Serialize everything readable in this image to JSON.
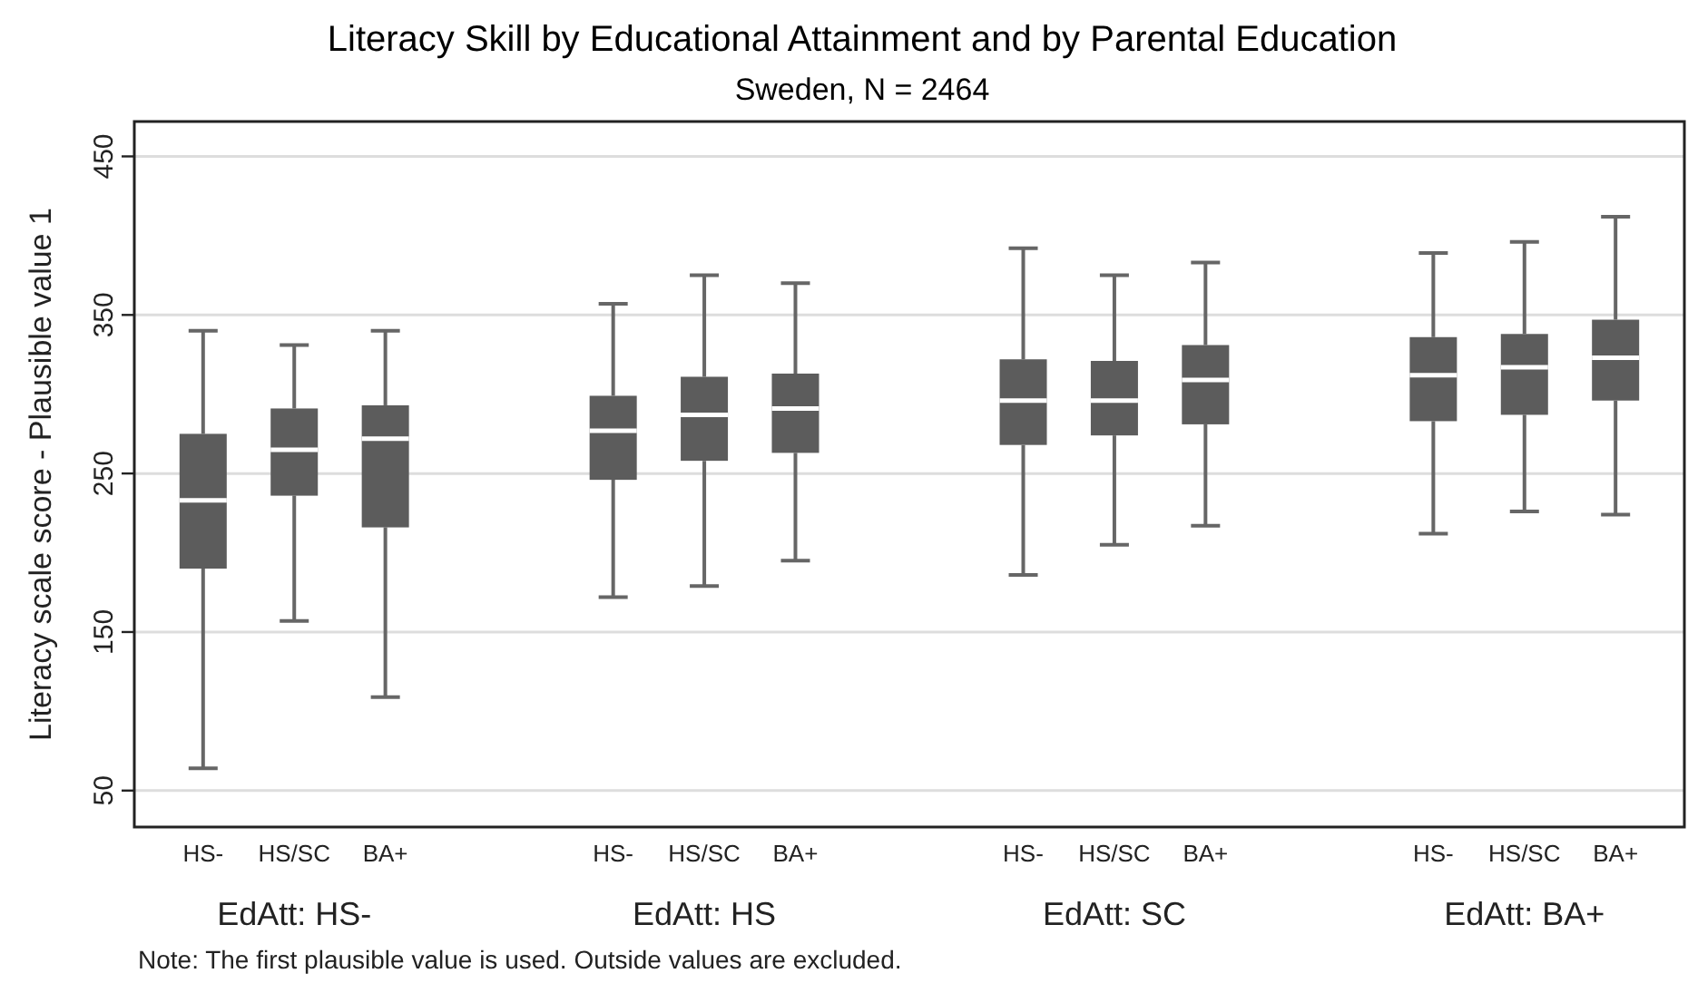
{
  "chart_data": {
    "type": "box",
    "title": "Literacy Skill by Educational Attainment and by Parental Education",
    "subtitle": "Sweden, N = 2464",
    "ylabel": "Literacy scale score - Plausible value 1",
    "categories": [
      "HS-",
      "HS/SC",
      "BA+",
      "HS-",
      "HS/SC",
      "BA+",
      "HS-",
      "HS/SC",
      "BA+",
      "HS-",
      "HS/SC",
      "BA+"
    ],
    "boxes": [
      {
        "low": 64,
        "q1": 190,
        "median": 233,
        "q3": 275,
        "high": 340
      },
      {
        "low": 157,
        "q1": 236,
        "median": 265,
        "q3": 291,
        "high": 331
      },
      {
        "low": 109,
        "q1": 216,
        "median": 272,
        "q3": 293,
        "high": 340
      },
      {
        "low": 172,
        "q1": 246,
        "median": 277,
        "q3": 299,
        "high": 357
      },
      {
        "low": 179,
        "q1": 258,
        "median": 287,
        "q3": 311,
        "high": 375
      },
      {
        "low": 195,
        "q1": 263,
        "median": 291,
        "q3": 313,
        "high": 370
      },
      {
        "low": 186,
        "q1": 268,
        "median": 296,
        "q3": 322,
        "high": 392
      },
      {
        "low": 205,
        "q1": 274,
        "median": 296,
        "q3": 321,
        "high": 375
      },
      {
        "low": 217,
        "q1": 281,
        "median": 309,
        "q3": 331,
        "high": 383
      },
      {
        "low": 212,
        "q1": 283,
        "median": 312,
        "q3": 336,
        "high": 389
      },
      {
        "low": 226,
        "q1": 287,
        "median": 317,
        "q3": 338,
        "high": 396
      },
      {
        "low": 224,
        "q1": 296,
        "median": 323,
        "q3": 347,
        "high": 412
      }
    ],
    "color": "#5c5c5c",
    "ylim": [
      27,
      472
    ],
    "yticks": [
      50,
      150,
      250,
      350,
      450
    ],
    "grid": "y",
    "annotations": [
      "EdAtt: HS-",
      "EdAtt: HS",
      "EdAtt: SC",
      "EdAtt: BA+",
      "Note: The first plausible value is used. Outside values are excluded."
    ]
  }
}
